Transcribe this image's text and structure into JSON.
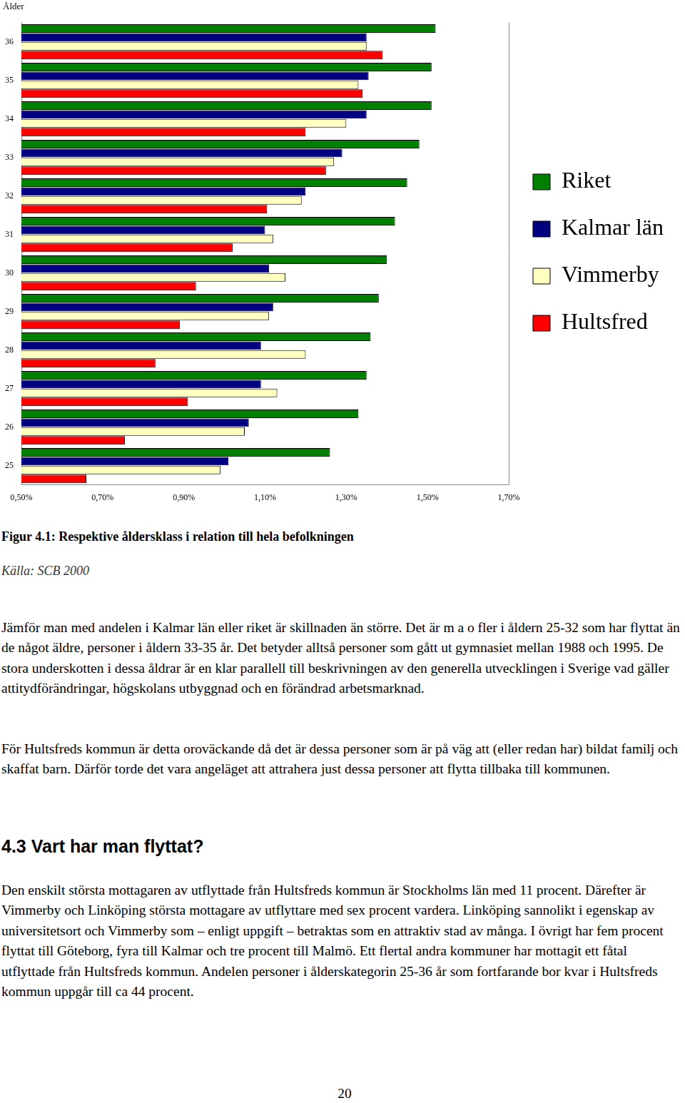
{
  "chart_data": {
    "type": "bar",
    "orientation": "horizontal",
    "title": "Ålder",
    "categories": [
      "36",
      "35",
      "34",
      "33",
      "32",
      "31",
      "30",
      "29",
      "28",
      "27",
      "26",
      "25"
    ],
    "series": [
      {
        "name": "Riket",
        "color": "#008000",
        "values": [
          1.52,
          1.51,
          1.51,
          1.48,
          1.45,
          1.42,
          1.4,
          1.38,
          1.36,
          1.35,
          1.33,
          1.26
        ]
      },
      {
        "name": "Kalmar län",
        "color": "#000080",
        "values": [
          1.35,
          1.355,
          1.35,
          1.29,
          1.2,
          1.1,
          1.11,
          1.12,
          1.09,
          1.09,
          1.06,
          1.01
        ]
      },
      {
        "name": "Vimmerby",
        "color": "#ffffc0",
        "values": [
          1.35,
          1.33,
          1.3,
          1.27,
          1.19,
          1.12,
          1.15,
          1.11,
          1.2,
          1.13,
          1.05,
          0.99
        ]
      },
      {
        "name": "Hultsfred",
        "color": "#ff0000",
        "values": [
          1.39,
          1.34,
          1.2,
          1.25,
          1.105,
          1.02,
          0.93,
          0.89,
          0.83,
          0.91,
          0.755,
          0.66
        ]
      }
    ],
    "xlim": [
      0.5,
      1.7
    ],
    "xticks": [
      {
        "value": 0.5,
        "label": "0,50%"
      },
      {
        "value": 0.7,
        "label": "0,70%"
      },
      {
        "value": 0.9,
        "label": "0,90%"
      },
      {
        "value": 1.1,
        "label": "1,10%"
      },
      {
        "value": 1.3,
        "label": "1,30%"
      },
      {
        "value": 1.5,
        "label": "1,50%"
      },
      {
        "value": 1.7,
        "label": "1,70%"
      }
    ],
    "grid": false,
    "legend": "right"
  },
  "caption": "Figur 4.1: Respektive åldersklass i relation till hela befolkningen",
  "source": "Källa: SCB 2000",
  "paragraphs_before": [
    "Jämför man med andelen i Kalmar län eller riket är skillnaden än större. Det är m a o fler i åldern 25-32 som har flyttat än de något äldre, personer i åldern 33-35 år. Det betyder alltså personer som gått ut gymnasiet mellan 1988 och 1995. De stora underskotten i dessa åldrar är en klar parallell till beskrivningen av den generella utvecklingen i Sverige vad gäller attitydförändringar, högskolans utbyggnad och en förändrad arbetsmarknad.",
    "För Hultsfreds kommun är detta oroväckande då det är dessa personer som är på väg att (eller redan har) bildat familj och skaffat barn. Därför torde det vara angeläget att attrahera just dessa personer att flytta tillbaka till kommunen."
  ],
  "heading": "4.3 Vart har man flyttat?",
  "paragraphs_after": [
    "Den enskilt största mottagaren av utflyttade från Hultsfreds kommun är Stockholms län med 11 procent. Därefter är Vimmerby och Linköping största mottagare av utflyttare med sex procent vardera. Linköping sannolikt i egenskap av universitetsort och Vimmerby som – enligt uppgift – betraktas som en attraktiv stad av många. I övrigt har fem procent flyttat till Göteborg, fyra till Kalmar och tre procent till Malmö. Ett flertal andra kommuner har mottagit ett fåtal utflyttade från Hultsfreds kommun. Andelen personer i ålderskategorin 25-36 år som fortfarande bor kvar i Hultsfreds kommun uppgår till ca 44 procent."
  ],
  "page_number": "20"
}
